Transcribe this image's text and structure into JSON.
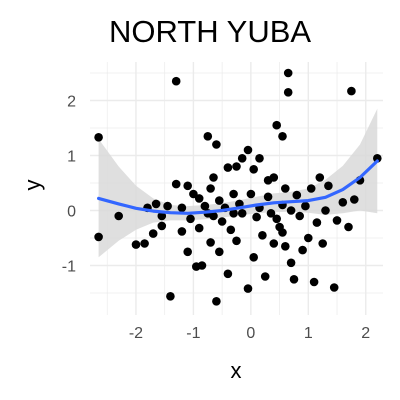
{
  "chart_data": {
    "type": "scatter",
    "title": "NORTH YUBA",
    "xlabel": "x",
    "ylabel": "y",
    "xlim": [
      -2.8,
      2.3
    ],
    "ylim": [
      -1.9,
      2.7
    ],
    "xticks": [
      -2,
      -1,
      0,
      1,
      2
    ],
    "yticks": [
      -1,
      0,
      1,
      2
    ],
    "grid": true,
    "colors": {
      "point": "#000000",
      "smooth": "#3366FF",
      "band": "#d9d9d9",
      "grid": "#ebebeb"
    },
    "points": [
      [
        -2.65,
        1.33
      ],
      [
        -2.65,
        -0.48
      ],
      [
        -2.3,
        -0.1
      ],
      [
        -2.0,
        -0.62
      ],
      [
        -1.85,
        -0.6
      ],
      [
        -1.8,
        0.05
      ],
      [
        -1.7,
        -0.42
      ],
      [
        -1.65,
        0.12
      ],
      [
        -1.55,
        -0.28
      ],
      [
        -1.45,
        0.08
      ],
      [
        -1.4,
        -1.56
      ],
      [
        -1.3,
        2.35
      ],
      [
        -1.3,
        0.48
      ],
      [
        -1.2,
        -0.38
      ],
      [
        -1.2,
        0.05
      ],
      [
        -1.1,
        0.45
      ],
      [
        -1.05,
        -0.15
      ],
      [
        -1.0,
        0.3
      ],
      [
        -0.95,
        -1.02
      ],
      [
        -0.9,
        0.22
      ],
      [
        -0.9,
        -0.32
      ],
      [
        -0.85,
        -1.0
      ],
      [
        -0.8,
        0.08
      ],
      [
        -0.75,
        1.35
      ],
      [
        -0.75,
        -0.05
      ],
      [
        -0.7,
        -0.58
      ],
      [
        -0.65,
        0.6
      ],
      [
        -0.65,
        -0.1
      ],
      [
        -0.6,
        1.2
      ],
      [
        -0.6,
        -1.65
      ],
      [
        -0.55,
        0.18
      ],
      [
        -0.55,
        -0.75
      ],
      [
        -0.5,
        -0.2
      ],
      [
        -0.45,
        0.05
      ],
      [
        -0.4,
        0.78
      ],
      [
        -0.4,
        -1.15
      ],
      [
        -0.35,
        -0.35
      ],
      [
        -0.3,
        0.3
      ],
      [
        -0.25,
        -0.55
      ],
      [
        -0.25,
        0.8
      ],
      [
        -0.2,
        0.12
      ],
      [
        -0.15,
        0.95
      ],
      [
        -0.15,
        -0.05
      ],
      [
        -0.05,
        -1.42
      ],
      [
        0.0,
        0.3
      ],
      [
        0.05,
        -0.85
      ],
      [
        0.05,
        0.75
      ],
      [
        0.1,
        -0.12
      ],
      [
        0.15,
        0.05
      ],
      [
        0.2,
        -0.45
      ],
      [
        0.25,
        -1.2
      ],
      [
        0.3,
        0.25
      ],
      [
        0.35,
        -0.05
      ],
      [
        0.4,
        0.6
      ],
      [
        0.4,
        -0.6
      ],
      [
        0.45,
        1.55
      ],
      [
        0.5,
        -0.3
      ],
      [
        0.55,
        1.35
      ],
      [
        0.55,
        0.1
      ],
      [
        0.6,
        -0.65
      ],
      [
        0.6,
        0.4
      ],
      [
        0.65,
        2.5
      ],
      [
        0.65,
        2.15
      ],
      [
        0.7,
        -0.95
      ],
      [
        0.7,
        0.0
      ],
      [
        0.75,
        -1.25
      ],
      [
        0.8,
        0.28
      ],
      [
        0.85,
        -0.1
      ],
      [
        0.9,
        -0.72
      ],
      [
        0.95,
        0.08
      ],
      [
        1.0,
        -0.5
      ],
      [
        1.05,
        0.4
      ],
      [
        1.1,
        -1.3
      ],
      [
        1.15,
        -0.22
      ],
      [
        1.2,
        0.6
      ],
      [
        1.25,
        -0.6
      ],
      [
        1.35,
        0.45
      ],
      [
        1.45,
        -1.4
      ],
      [
        1.5,
        -0.18
      ],
      [
        1.6,
        0.15
      ],
      [
        1.7,
        -0.3
      ],
      [
        1.75,
        2.17
      ],
      [
        1.8,
        0.2
      ],
      [
        1.9,
        0.55
      ],
      [
        2.2,
        0.95
      ],
      [
        -1.1,
        -0.75
      ],
      [
        0.3,
        0.55
      ],
      [
        -0.3,
        -0.05
      ],
      [
        1.3,
        0.0
      ],
      [
        0.15,
        0.95
      ],
      [
        -0.7,
        0.4
      ],
      [
        0.45,
        -0.15
      ],
      [
        -0.05,
        1.1
      ],
      [
        0.55,
        -0.4
      ],
      [
        -1.55,
        -0.1
      ]
    ],
    "smooth": {
      "x": [
        -2.65,
        -2.3,
        -2.0,
        -1.7,
        -1.4,
        -1.1,
        -0.8,
        -0.5,
        -0.2,
        0.1,
        0.4,
        0.7,
        1.0,
        1.3,
        1.6,
        1.9,
        2.2
      ],
      "y": [
        0.22,
        0.12,
        0.04,
        -0.01,
        -0.04,
        -0.05,
        -0.03,
        0.0,
        0.05,
        0.1,
        0.14,
        0.16,
        0.18,
        0.24,
        0.38,
        0.6,
        0.9
      ],
      "lower": [
        -0.85,
        -0.55,
        -0.35,
        -0.22,
        -0.18,
        -0.18,
        -0.16,
        -0.13,
        -0.09,
        -0.05,
        -0.03,
        -0.02,
        -0.04,
        -0.08,
        -0.05,
        0.0,
        -0.05
      ],
      "upper": [
        1.3,
        0.8,
        0.45,
        0.22,
        0.1,
        0.08,
        0.1,
        0.13,
        0.19,
        0.25,
        0.31,
        0.34,
        0.4,
        0.56,
        0.81,
        1.2,
        1.85
      ]
    }
  }
}
